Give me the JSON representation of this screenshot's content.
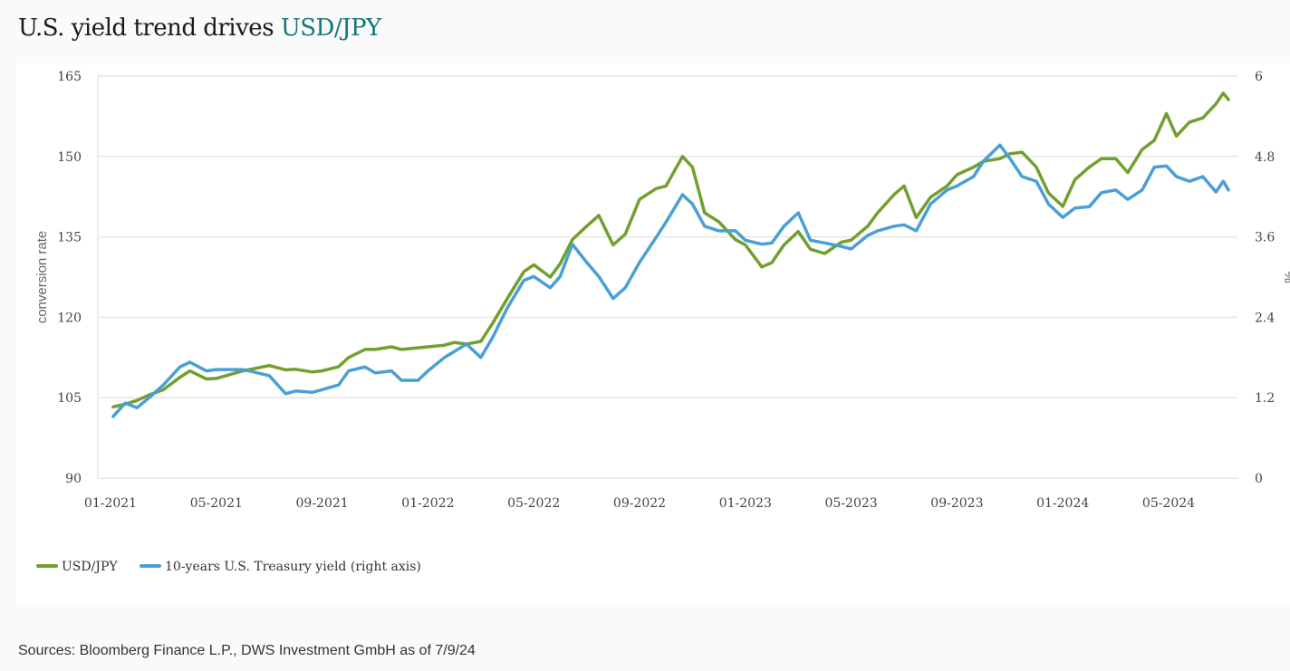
{
  "title": {
    "main": "U.S. yield trend drives ",
    "accent": "USD/JPY",
    "accent_color": "#12777a"
  },
  "menu": {
    "icon": "hamburger-menu-icon"
  },
  "source": "Sources: Bloomberg Finance L.P., DWS Investment GmbH as of 7/9/24",
  "chart_data": {
    "type": "line",
    "title": "U.S. yield trend drives USD/JPY",
    "xlabel": "",
    "ylabel": "conversion rate",
    "y2label": "%",
    "ylim": [
      90,
      165
    ],
    "y2lim": [
      0,
      6
    ],
    "yticks": [
      "90",
      "105",
      "120",
      "135",
      "150",
      "165"
    ],
    "y2ticks": [
      "0",
      "1.2",
      "2.4",
      "3.6",
      "4.8",
      "6"
    ],
    "xticks": [
      "01-2021",
      "05-2021",
      "09-2021",
      "01-2022",
      "05-2022",
      "09-2022",
      "01-2023",
      "05-2023",
      "09-2023",
      "01-2024",
      "05-2024"
    ],
    "grid": true,
    "legend_position": "bottom-left",
    "x": [
      "2021-01-04",
      "2021-01-18",
      "2021-02-01",
      "2021-02-15",
      "2021-03-01",
      "2021-03-20",
      "2021-04-01",
      "2021-04-20",
      "2021-05-01",
      "2021-06-01",
      "2021-07-01",
      "2021-07-20",
      "2021-08-01",
      "2021-08-20",
      "2021-09-01",
      "2021-09-20",
      "2021-10-01",
      "2021-10-20",
      "2021-11-01",
      "2021-11-20",
      "2021-12-01",
      "2021-12-20",
      "2022-01-01",
      "2022-01-20",
      "2022-02-01",
      "2022-02-15",
      "2022-03-01",
      "2022-03-15",
      "2022-04-01",
      "2022-04-20",
      "2022-05-01",
      "2022-05-20",
      "2022-06-01",
      "2022-06-15",
      "2022-07-01",
      "2022-07-15",
      "2022-08-01",
      "2022-08-15",
      "2022-09-01",
      "2022-09-20",
      "2022-10-01",
      "2022-10-20",
      "2022-11-01",
      "2022-11-15",
      "2022-12-01",
      "2022-12-20",
      "2023-01-01",
      "2023-01-20",
      "2023-02-01",
      "2023-02-15",
      "2023-03-01",
      "2023-03-15",
      "2023-04-01",
      "2023-04-20",
      "2023-05-01",
      "2023-05-20",
      "2023-06-01",
      "2023-06-20",
      "2023-07-01",
      "2023-07-15",
      "2023-08-01",
      "2023-08-20",
      "2023-09-01",
      "2023-09-20",
      "2023-10-01",
      "2023-10-20",
      "2023-11-01",
      "2023-11-15",
      "2023-12-01",
      "2023-12-15",
      "2024-01-01",
      "2024-01-15",
      "2024-02-01",
      "2024-02-15",
      "2024-03-01",
      "2024-03-15",
      "2024-04-01",
      "2024-04-15",
      "2024-04-29",
      "2024-05-10",
      "2024-05-25",
      "2024-06-10",
      "2024-06-25",
      "2024-07-03",
      "2024-07-09"
    ],
    "series": [
      {
        "name": "USD/JPY",
        "axis": "left",
        "color": "#72a02e",
        "values": [
          103.3,
          103.8,
          104.5,
          105.5,
          106.5,
          108.8,
          110.0,
          108.5,
          108.6,
          110.0,
          111.0,
          110.2,
          110.3,
          109.8,
          110.0,
          110.8,
          112.5,
          114.0,
          114.0,
          114.5,
          114.0,
          114.3,
          114.5,
          114.8,
          115.3,
          115.0,
          115.5,
          119.0,
          123.5,
          128.5,
          129.8,
          127.5,
          130.0,
          134.5,
          137.0,
          139.0,
          133.5,
          135.5,
          142.0,
          144.0,
          144.5,
          150.0,
          148.0,
          139.5,
          137.8,
          134.5,
          133.5,
          129.4,
          130.2,
          133.5,
          136.0,
          132.7,
          131.9,
          134.0,
          134.4,
          137.0,
          139.5,
          142.9,
          144.5,
          138.6,
          142.4,
          144.5,
          146.6,
          148.0,
          149.1,
          149.6,
          150.5,
          150.8,
          148.0,
          143.2,
          140.7,
          145.7,
          148.0,
          149.6,
          149.6,
          147.0,
          151.3,
          153.0,
          158.0,
          153.8,
          156.4,
          157.2,
          159.8,
          161.8,
          160.6
        ]
      },
      {
        "name": "10-years U.S. Treasury yield (right axis)",
        "axis": "right",
        "color": "#4a9fd4",
        "values": [
          0.92,
          1.12,
          1.05,
          1.2,
          1.39,
          1.66,
          1.73,
          1.6,
          1.62,
          1.62,
          1.53,
          1.26,
          1.3,
          1.28,
          1.32,
          1.39,
          1.6,
          1.66,
          1.57,
          1.6,
          1.46,
          1.46,
          1.6,
          1.8,
          1.89,
          2.0,
          1.8,
          2.11,
          2.54,
          2.95,
          3.01,
          2.84,
          3.01,
          3.49,
          3.22,
          3.01,
          2.68,
          2.84,
          3.22,
          3.59,
          3.82,
          4.23,
          4.09,
          3.76,
          3.69,
          3.69,
          3.55,
          3.49,
          3.51,
          3.76,
          3.96,
          3.55,
          3.51,
          3.46,
          3.42,
          3.62,
          3.69,
          3.76,
          3.78,
          3.69,
          4.09,
          4.3,
          4.36,
          4.5,
          4.73,
          4.97,
          4.77,
          4.5,
          4.43,
          4.09,
          3.89,
          4.03,
          4.05,
          4.26,
          4.3,
          4.16,
          4.3,
          4.64,
          4.66,
          4.5,
          4.43,
          4.5,
          4.27,
          4.43,
          4.3
        ]
      }
    ]
  }
}
